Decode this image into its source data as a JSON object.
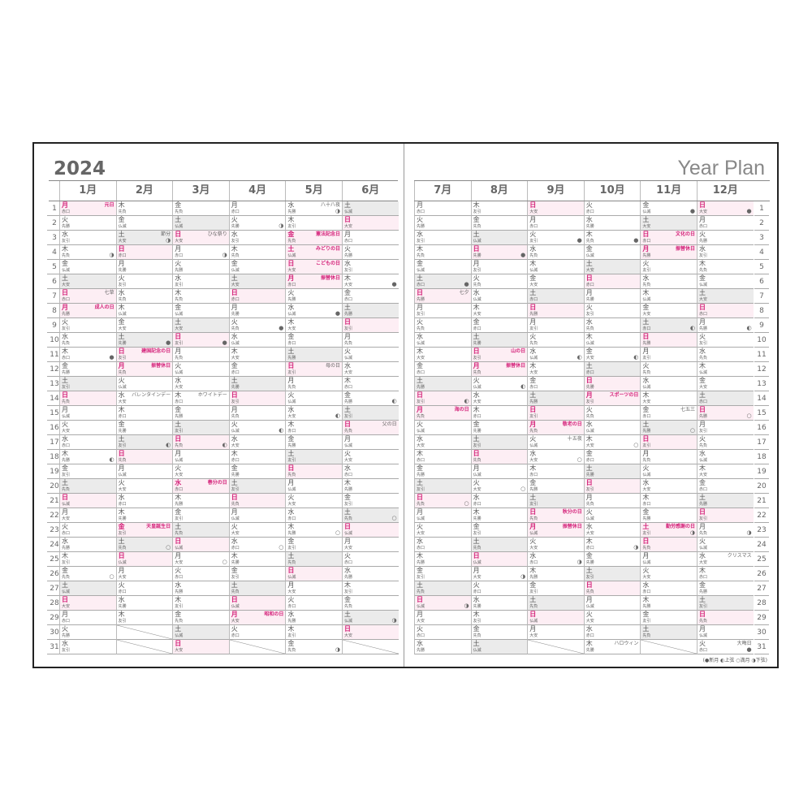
{
  "title": {
    "year": "2024",
    "plan": "Year Plan"
  },
  "legend": "(●新月 ◐上弦 ○満月 ◑下弦)",
  "months": [
    {
      "label": "1月",
      "w": "月火水木金土日月火水木金土日月火水木金土日月火水木金土日月火水",
      "r": [
        "赤口",
        "先勝",
        "友引",
        "先負",
        "仏滅",
        "大安",
        "赤口",
        "先勝",
        "友引",
        "先負",
        "赤口",
        "先勝",
        "友引",
        "先負",
        "仏滅",
        "大安",
        "赤口",
        "先勝",
        "友引",
        "先負",
        "仏滅",
        "大安",
        "赤口",
        "先勝",
        "友引",
        "先負",
        "仏滅",
        "大安",
        "赤口",
        "先勝",
        "友引"
      ],
      "holidays": {
        "1": "元日",
        "8": "成人の日"
      },
      "events": {
        "7": "七草"
      },
      "moons": {
        "4": "◑",
        "11": "●",
        "18": "◐",
        "26": "○"
      }
    },
    {
      "label": "2月",
      "w": "木金土日月火水木金土日月火水木金土日月火水木金土日月火水木",
      "r": [
        "先負",
        "仏滅",
        "大安",
        "赤口",
        "先勝",
        "友引",
        "先負",
        "仏滅",
        "大安",
        "先勝",
        "友引",
        "先負",
        "仏滅",
        "大安",
        "赤口",
        "先勝",
        "友引",
        "先負",
        "仏滅",
        "大安",
        "赤口",
        "先勝",
        "友引",
        "先負",
        "仏滅",
        "大安",
        "赤口",
        "先勝",
        "友引"
      ],
      "holidays": {
        "11": "建国記念の日",
        "12": "振替休日",
        "23": "天皇誕生日"
      },
      "events": {
        "3": "節分",
        "14": "バレンタインデー"
      },
      "moons": {
        "3": "◑",
        "10": "●",
        "17": "◐",
        "24": "○"
      }
    },
    {
      "label": "3月",
      "w": "金土日月火水木金土日月火水木金土日月火水木金土日月火水木金土日",
      "r": [
        "先負",
        "仏滅",
        "大安",
        "赤口",
        "先勝",
        "友引",
        "先負",
        "仏滅",
        "大安",
        "友引",
        "先負",
        "仏滅",
        "大安",
        "赤口",
        "先勝",
        "友引",
        "先負",
        "仏滅",
        "大安",
        "赤口",
        "先勝",
        "友引",
        "先負",
        "仏滅",
        "大安",
        "赤口",
        "先勝",
        "友引",
        "先負",
        "仏滅",
        "大安"
      ],
      "holidays": {
        "20": "春分の日"
      },
      "events": {
        "3": "ひな祭り",
        "14": "ホワイトデー"
      },
      "moons": {
        "4": "◑",
        "10": "●",
        "17": "◐",
        "25": "○"
      }
    },
    {
      "label": "4月",
      "w": "月火水木金土日月火水木金土日月火水木金土日月火水木金土日月火",
      "r": [
        "赤口",
        "先勝",
        "友引",
        "先負",
        "仏滅",
        "大安",
        "赤口",
        "先勝",
        "先負",
        "仏滅",
        "大安",
        "赤口",
        "先勝",
        "友引",
        "先負",
        "仏滅",
        "大安",
        "赤口",
        "先勝",
        "友引",
        "先負",
        "仏滅",
        "大安",
        "赤口",
        "先勝",
        "友引",
        "先負",
        "仏滅",
        "大安",
        "赤口"
      ],
      "holidays": {
        "29": "昭和の日"
      },
      "events": {},
      "moons": {
        "2": "◑",
        "9": "●",
        "16": "◐",
        "24": "○"
      }
    },
    {
      "label": "5月",
      "w": "水木金土日月火水木金土日月火水木金土日月火水木金土日月火水木金",
      "r": [
        "先勝",
        "友引",
        "先負",
        "仏滅",
        "大安",
        "赤口",
        "先勝",
        "仏滅",
        "大安",
        "赤口",
        "先勝",
        "友引",
        "先負",
        "仏滅",
        "大安",
        "赤口",
        "先勝",
        "友引",
        "先負",
        "仏滅",
        "大安",
        "赤口",
        "先勝",
        "友引",
        "先負",
        "仏滅",
        "大安",
        "赤口",
        "先勝",
        "友引",
        "先負"
      ],
      "holidays": {
        "3": "憲法記念日",
        "4": "みどりの日",
        "5": "こどもの日",
        "6": "振替休日"
      },
      "events": {
        "1": "八十八夜",
        "12": "母の日"
      },
      "moons": {
        "1": "◑",
        "8": "●",
        "15": "◐",
        "23": "○",
        "31": "◑"
      }
    },
    {
      "label": "6月",
      "w": "土日月火水木金土日月火水木金土日月火水木金土日月火水木金土日",
      "r": [
        "仏滅",
        "大安",
        "赤口",
        "先勝",
        "友引",
        "大安",
        "赤口",
        "先勝",
        "友引",
        "先負",
        "仏滅",
        "大安",
        "赤口",
        "先勝",
        "友引",
        "先負",
        "仏滅",
        "大安",
        "赤口",
        "先勝",
        "友引",
        "先負",
        "仏滅",
        "大安",
        "赤口",
        "先勝",
        "友引",
        "先負",
        "仏滅",
        "大安"
      ],
      "holidays": {},
      "events": {
        "16": "父の日"
      },
      "moons": {
        "6": "●",
        "14": "◐",
        "22": "○",
        "29": "◑"
      }
    },
    {
      "label": "7月",
      "w": "月火水木金土日月火水木金土日月火水木金土日月火水木金土日月火水",
      "r": [
        "赤口",
        "先勝",
        "友引",
        "先負",
        "仏滅",
        "赤口",
        "先勝",
        "友引",
        "先負",
        "仏滅",
        "大安",
        "赤口",
        "先勝",
        "友引",
        "先負",
        "仏滅",
        "大安",
        "赤口",
        "先勝",
        "友引",
        "先負",
        "仏滅",
        "大安",
        "赤口",
        "先勝",
        "友引",
        "先負",
        "仏滅",
        "大安",
        "赤口",
        "先勝"
      ],
      "holidays": {
        "15": "海の日"
      },
      "events": {
        "7": "七夕"
      },
      "moons": {
        "6": "●",
        "14": "◐",
        "21": "○",
        "28": "◑"
      }
    },
    {
      "label": "8月",
      "w": "木金土日月火水木金土日月火水木金土日月火水木金土日月火水木金土",
      "r": [
        "友引",
        "先負",
        "仏滅",
        "先勝",
        "友引",
        "先負",
        "仏滅",
        "大安",
        "赤口",
        "先勝",
        "友引",
        "先負",
        "仏滅",
        "大安",
        "赤口",
        "先勝",
        "友引",
        "先負",
        "仏滅",
        "大安",
        "赤口",
        "先勝",
        "友引",
        "先負",
        "仏滅",
        "大安",
        "赤口",
        "先勝",
        "友引",
        "先負",
        "仏滅"
      ],
      "holidays": {
        "11": "山の日",
        "12": "振替休日"
      },
      "events": {},
      "moons": {
        "4": "●",
        "13": "◐",
        "20": "○",
        "26": "◑"
      }
    },
    {
      "label": "9月",
      "w": "日月火水木金土日月火水木金土日月火水木金土日月火水木金土日月",
      "r": [
        "大安",
        "赤口",
        "友引",
        "先負",
        "仏滅",
        "大安",
        "赤口",
        "先勝",
        "友引",
        "先負",
        "仏滅",
        "大安",
        "赤口",
        "先勝",
        "友引",
        "先負",
        "仏滅",
        "大安",
        "赤口",
        "先勝",
        "友引",
        "先負",
        "仏滅",
        "大安",
        "赤口",
        "先勝",
        "友引",
        "先負",
        "仏滅",
        "大安"
      ],
      "holidays": {
        "16": "敬老の日",
        "22": "秋分の日",
        "23": "振替休日"
      },
      "events": {
        "17": "十五夜"
      },
      "moons": {
        "3": "●",
        "11": "◐",
        "18": "○",
        "25": "◑"
      }
    },
    {
      "label": "10月",
      "w": "火水木金土日月火水木金土日月火水木金土日月火水木金土日月火水木",
      "r": [
        "赤口",
        "先勝",
        "先負",
        "仏滅",
        "大安",
        "赤口",
        "先勝",
        "友引",
        "先負",
        "仏滅",
        "大安",
        "赤口",
        "先勝",
        "友引",
        "先負",
        "仏滅",
        "大安",
        "赤口",
        "先勝",
        "友引",
        "先負",
        "仏滅",
        "大安",
        "赤口",
        "先勝",
        "友引",
        "先負",
        "仏滅",
        "大安",
        "赤口",
        "先勝"
      ],
      "holidays": {
        "14": "スポーツの日"
      },
      "events": {
        "31": "ハロウィン"
      },
      "moons": {
        "3": "●",
        "11": "◐",
        "17": "○",
        "24": "◑"
      }
    },
    {
      "label": "11月",
      "w": "金土日月火水木金土日月火水木金土日月火水木金土日月火水木金土",
      "r": [
        "仏滅",
        "大安",
        "赤口",
        "先勝",
        "友引",
        "先負",
        "仏滅",
        "大安",
        "赤口",
        "先勝",
        "友引",
        "先負",
        "仏滅",
        "大安",
        "赤口",
        "先勝",
        "友引",
        "先負",
        "仏滅",
        "大安",
        "赤口",
        "先勝",
        "友引",
        "先負",
        "仏滅",
        "大安",
        "赤口",
        "先勝",
        "友引",
        "先負"
      ],
      "holidays": {
        "3": "文化の日",
        "4": "振替休日",
        "23": "勤労感謝の日"
      },
      "events": {
        "15": "七五三"
      },
      "moons": {
        "1": "●",
        "9": "◐",
        "16": "○",
        "23": "◑"
      }
    },
    {
      "label": "12月",
      "w": "日月火水木金土日月火水木金土日月火水木金土日月火水木金土日月火",
      "r": [
        "大安",
        "赤口",
        "先勝",
        "友引",
        "先負",
        "仏滅",
        "大安",
        "赤口",
        "先勝",
        "友引",
        "先負",
        "仏滅",
        "大安",
        "赤口",
        "先勝",
        "友引",
        "先負",
        "仏滅",
        "大安",
        "赤口",
        "先勝",
        "友引",
        "先負",
        "仏滅",
        "大安",
        "赤口",
        "先勝",
        "友引",
        "先負",
        "仏滅",
        "赤口"
      ],
      "holidays": {},
      "events": {
        "25": "クリスマス",
        "31": "大晦日"
      },
      "moons": {
        "1": "●",
        "9": "◐",
        "15": "○",
        "23": "◑",
        "31": "●"
      }
    }
  ],
  "dayNumbers": [
    "1",
    "2",
    "3",
    "4",
    "5",
    "6",
    "7",
    "8",
    "9",
    "10",
    "11",
    "12",
    "13",
    "14",
    "15",
    "16",
    "17",
    "18",
    "19",
    "20",
    "21",
    "22",
    "23",
    "24",
    "25",
    "26",
    "27",
    "28",
    "29",
    "30",
    "31"
  ]
}
